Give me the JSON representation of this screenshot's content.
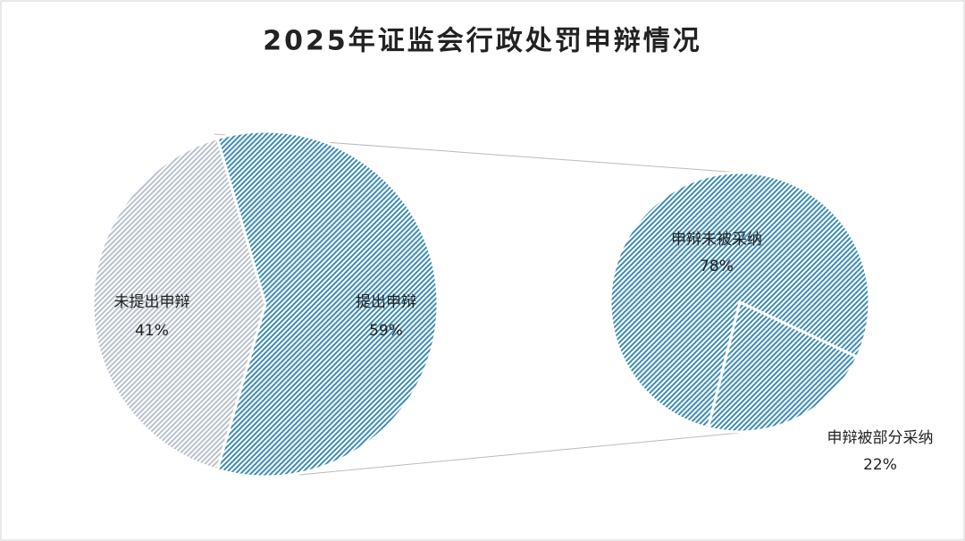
{
  "chart_data": {
    "type": "pie_of_pie",
    "title": "2025年证监会行政处罚申辩情况",
    "categories": [
      "提出申辩",
      "未提出申辩"
    ],
    "values": [
      59,
      41
    ],
    "value_labels": [
      "59%",
      "41%"
    ],
    "colors": [
      "#3f8db5",
      "#b9c2cc"
    ],
    "sub_categories": [
      "申辩未被采纳",
      "申辩被部分采纳"
    ],
    "sub_values": [
      78,
      22
    ],
    "sub_value_labels": [
      "78%",
      "22%"
    ],
    "sub_colors": [
      "#3f8db5",
      "#3f8db5"
    ]
  }
}
